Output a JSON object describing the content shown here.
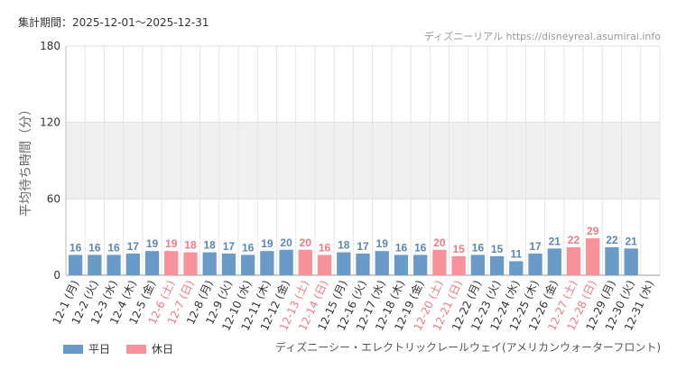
{
  "period_text": "集計期間：2025-12-01～2025-12-31",
  "source_text": "ディズニーリアル https://disneyreal.asumirai.info",
  "footer_text": "ディズニーシー・エレクトリックレールウェイ(アメリカンウォーターフロント)",
  "colors": {
    "weekday": "#6a9ac8",
    "holiday": "#f7929a",
    "weekday_label": "#5a86b8",
    "holiday_label": "#f07a84",
    "band": "#f0f0f0"
  },
  "chart_data": {
    "type": "bar",
    "title": "",
    "ylabel": "平均待ち時間（分）",
    "xlabel": "",
    "ylim": [
      0,
      180
    ],
    "yticks": [
      0,
      60,
      120,
      180
    ],
    "shaded_band": [
      60,
      120
    ],
    "grid": true,
    "legend": [
      {
        "label": "平日",
        "type": "weekday"
      },
      {
        "label": "休日",
        "type": "holiday"
      }
    ],
    "categories": [
      "12-1 (月)",
      "12-2 (火)",
      "12-3 (水)",
      "12-4 (木)",
      "12-5 (金)",
      "12-6 (土)",
      "12-7 (日)",
      "12-8 (月)",
      "12-9 (火)",
      "12-10 (水)",
      "12-11 (木)",
      "12-12 (金)",
      "12-13 (土)",
      "12-14 (日)",
      "12-15 (月)",
      "12-16 (火)",
      "12-17 (水)",
      "12-18 (木)",
      "12-19 (金)",
      "12-20 (土)",
      "12-21 (日)",
      "12-22 (月)",
      "12-23 (火)",
      "12-24 (水)",
      "12-25 (木)",
      "12-26 (金)",
      "12-27 (土)",
      "12-28 (日)",
      "12-29 (月)",
      "12-30 (火)",
      "12-31 (水)"
    ],
    "day_types": [
      "weekday",
      "weekday",
      "weekday",
      "weekday",
      "weekday",
      "holiday",
      "holiday",
      "weekday",
      "weekday",
      "weekday",
      "weekday",
      "weekday",
      "holiday",
      "holiday",
      "weekday",
      "weekday",
      "weekday",
      "weekday",
      "weekday",
      "holiday",
      "holiday",
      "weekday",
      "weekday",
      "weekday",
      "weekday",
      "weekday",
      "holiday",
      "holiday",
      "weekday",
      "weekday",
      "weekday"
    ],
    "values": [
      16,
      16,
      16,
      17,
      19,
      19,
      18,
      18,
      17,
      16,
      19,
      20,
      20,
      16,
      18,
      17,
      19,
      16,
      16,
      20,
      15,
      16,
      15,
      11,
      17,
      21,
      22,
      29,
      22,
      21,
      null
    ]
  }
}
